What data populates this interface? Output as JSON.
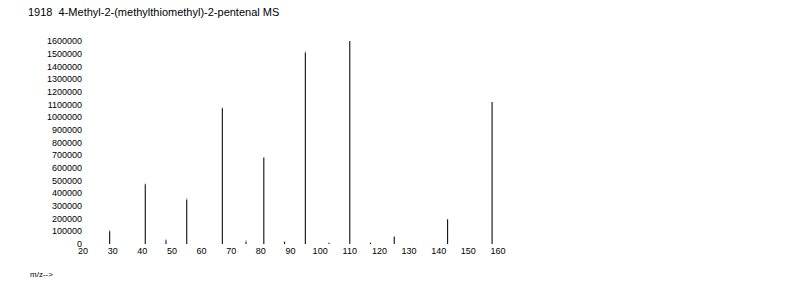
{
  "chart_data": {
    "type": "bar",
    "title": "1918  4-Methyl-2-(methylthiomethyl)-2-pentenal MS",
    "x_label": "m/z-->",
    "x": [
      29,
      41,
      48,
      55,
      67,
      75,
      81,
      88,
      95,
      103,
      110,
      117,
      125,
      143,
      158
    ],
    "values": [
      100000,
      470000,
      30000,
      350000,
      1070000,
      20000,
      680000,
      15000,
      1510000,
      10000,
      1600000,
      10000,
      60000,
      195000,
      1120000
    ],
    "color": "#000000",
    "xlim": [
      20,
      160
    ],
    "xticks": [
      20,
      30,
      40,
      50,
      60,
      70,
      80,
      90,
      100,
      110,
      120,
      130,
      140,
      150,
      160
    ],
    "ylim": [
      0,
      1600000
    ],
    "yticks": [
      0,
      100000,
      200000,
      300000,
      400000,
      500000,
      600000,
      700000,
      800000,
      900000,
      1000000,
      1100000,
      1200000,
      1300000,
      1400000,
      1500000,
      1600000
    ],
    "grid": false,
    "data_labels": true
  }
}
